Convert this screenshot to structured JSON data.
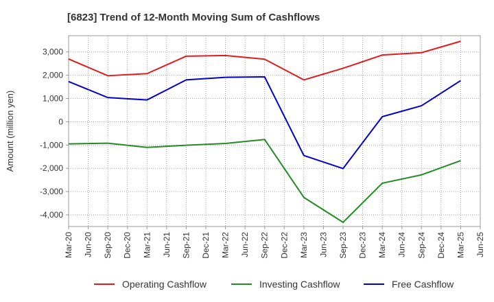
{
  "chart_data": {
    "type": "line",
    "title": "[6823]  Trend of 12-Month Moving Sum of Cashflows",
    "xlabel": "",
    "ylabel": "Amount (million yen)",
    "ylim": [
      -4500,
      3700
    ],
    "yticks": [
      3000,
      2000,
      1000,
      0,
      -1000,
      -2000,
      -3000,
      -4000
    ],
    "ytick_labels": [
      "3,000",
      "2,000",
      "1,000",
      "0",
      "-1,000",
      "-2,000",
      "-3,000",
      "-4,000"
    ],
    "x_ticks": [
      "Mar-20",
      "Jun-20",
      "Sep-20",
      "Dec-20",
      "Mar-21",
      "Jun-21",
      "Sep-21",
      "Dec-21",
      "Mar-22",
      "Jun-22",
      "Sep-22",
      "Dec-22",
      "Mar-23",
      "Jun-23",
      "Sep-23",
      "Dec-23",
      "Mar-24",
      "Jun-24",
      "Sep-24",
      "Dec-24",
      "Mar-25",
      "Jun-25"
    ],
    "x": [
      "Mar-20",
      "Sep-20",
      "Mar-21",
      "Sep-21",
      "Mar-22",
      "Sep-22",
      "Mar-23",
      "Sep-23",
      "Mar-24",
      "Sep-24",
      "Mar-25"
    ],
    "grid": true,
    "legend_position": "bottom",
    "series": [
      {
        "name": "Operating Cashflow",
        "color": "#e41a1c",
        "values": [
          2700,
          1980,
          2070,
          2820,
          2850,
          2690,
          1800,
          2300,
          2870,
          2970,
          3460
        ]
      },
      {
        "name": "Investing Cashflow",
        "color": "#228b22",
        "values": [
          -950,
          -920,
          -1100,
          -1010,
          -930,
          -760,
          -3250,
          -4320,
          -2640,
          -2280,
          -1670
        ]
      },
      {
        "name": "Free Cashflow",
        "color": "#0000cd",
        "values": [
          1730,
          1040,
          940,
          1800,
          1910,
          1930,
          -1450,
          -2010,
          220,
          690,
          1770
        ]
      }
    ]
  }
}
